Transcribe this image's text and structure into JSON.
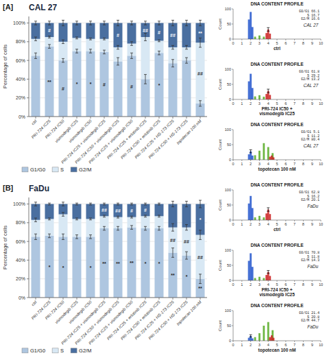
{
  "chart_data": [
    {
      "type": "bar",
      "stacked": true,
      "title": "CAL 27",
      "annotations": [
        "[A]"
      ],
      "categories": [
        "ctrl",
        "PRI-724 IC25",
        "PRI-724 IC50",
        "vismodegib IC25",
        "vismodegib IC50",
        "PRI-724 IC25 + vismodegib IC25",
        "PRI-724 IC50 + vismodegib IC25",
        "PRI-724 IC25 + vismodegib IC50",
        "PRI-724 IC25 + erlotinib IC25",
        "PRI-724 IC50 + erlotinib IC25",
        "PRI-724 IC25 + HS-173 IC25",
        "PRI-724 IC50 + HS-173 IC25",
        "topotecan 100 nM"
      ],
      "ylabel": "Percentage of cells",
      "ylim": [
        0,
        107
      ],
      "yticks": [
        {
          "value": 0,
          "label": "0%"
        },
        {
          "value": 20,
          "label": "20%"
        },
        {
          "value": 40,
          "label": "40%"
        },
        {
          "value": 60,
          "label": "60%"
        },
        {
          "value": 80,
          "label": "80%"
        },
        {
          "value": 100,
          "label": "100%"
        }
      ],
      "grid": true,
      "legend": "bottom",
      "series": [
        {
          "name": "G1/G0",
          "color": "#aec6e0",
          "values": [
            65,
            75,
            60,
            70,
            70,
            69,
            59,
            65,
            40,
            68,
            57,
            60,
            14
          ],
          "errors": [
            3,
            2,
            2,
            2,
            2,
            2,
            4,
            3,
            5,
            2,
            4,
            3,
            3
          ],
          "annotations": [
            null,
            "**",
            "#",
            "*",
            "*",
            "#",
            null,
            "#",
            null,
            "*",
            null,
            null,
            null
          ]
        },
        {
          "name": "S",
          "color": "#d8e8f4",
          "values": [
            18,
            10,
            20,
            14,
            13,
            14,
            15,
            13,
            45,
            13,
            17,
            14,
            65
          ],
          "errors": [
            2,
            1,
            2,
            1,
            1,
            1,
            2,
            2,
            4,
            1,
            2,
            2,
            5
          ],
          "annotations": [
            null,
            null,
            null,
            null,
            null,
            null,
            null,
            null,
            null,
            null,
            null,
            null,
            "##"
          ]
        },
        {
          "name": "G2/M",
          "color": "#4a6fa0",
          "values": [
            17,
            15,
            20,
            16,
            17,
            17,
            26,
            22,
            15,
            19,
            26,
            26,
            21
          ],
          "errors": [
            2,
            2,
            3,
            2,
            2,
            2,
            3,
            2,
            2,
            2,
            3,
            3,
            3
          ],
          "annotations": [
            null,
            "#",
            null,
            null,
            null,
            null,
            "#",
            null,
            "##",
            "#",
            "##",
            null,
            "**"
          ]
        }
      ]
    },
    {
      "type": "bar",
      "stacked": true,
      "title": "FaDu",
      "annotations": [
        "[B]"
      ],
      "categories": [
        "ctrl",
        "PRI-724 IC25",
        "PRI-724 IC50",
        "vismodegib IC25",
        "vismodegib IC50",
        "PRI-724 IC25 + vismodegib IC25",
        "PRI-724 IC50 + vismodegib IC25",
        "PRI-724 IC25 + vismodegib IC50",
        "PRI-724 IC25 + erlotinib IC25",
        "PRI-724 IC50 + erlotinib IC25",
        "PRI-724 IC25 + HS-173 IC25",
        "PRI-724 IC50 + HS-173 IC25",
        "topotecan 100 nM"
      ],
      "ylabel": "Percentage of cells",
      "ylim": [
        0,
        107
      ],
      "yticks": [
        {
          "value": 0,
          "label": "0%"
        },
        {
          "value": 20,
          "label": "20%"
        },
        {
          "value": 40,
          "label": "40%"
        },
        {
          "value": 60,
          "label": "60%"
        },
        {
          "value": 80,
          "label": "80%"
        },
        {
          "value": 100,
          "label": "100%"
        }
      ],
      "grid": true,
      "legend": "bottom",
      "series": [
        {
          "name": "G1/G0",
          "color": "#aec6e0",
          "values": [
            65,
            66,
            65,
            65,
            65,
            74,
            74,
            75,
            74,
            74,
            48,
            45,
            20
          ],
          "errors": [
            3,
            2,
            3,
            2,
            2,
            2,
            2,
            2,
            2,
            2,
            5,
            4,
            5
          ],
          "annotations": [
            null,
            "*",
            "*",
            null,
            "*",
            "**",
            "**",
            "**",
            "*",
            "*",
            "**",
            "*",
            "**"
          ]
        },
        {
          "name": "S",
          "color": "#d8e8f4",
          "values": [
            18,
            18,
            24,
            19,
            19,
            13,
            12,
            11,
            13,
            13,
            27,
            30,
            47
          ],
          "errors": [
            2,
            1,
            2,
            1,
            1,
            1,
            1,
            1,
            1,
            1,
            4,
            3,
            5
          ],
          "annotations": [
            null,
            null,
            null,
            null,
            null,
            null,
            null,
            null,
            null,
            null,
            "##",
            "##",
            "##"
          ]
        },
        {
          "name": "G2/M",
          "color": "#4a6fa0",
          "values": [
            17,
            16,
            11,
            16,
            16,
            13,
            14,
            14,
            13,
            13,
            25,
            25,
            33
          ],
          "errors": [
            2,
            1,
            2,
            1,
            1,
            1,
            1,
            1,
            1,
            1,
            3,
            3,
            4
          ],
          "annotations": [
            null,
            null,
            null,
            null,
            null,
            "##",
            "##",
            "#",
            "#",
            null,
            null,
            null,
            "*"
          ]
        }
      ]
    },
    {
      "type": "bar",
      "title": "DNA CONTENT PROFILE",
      "xlabel": "ctrl",
      "ylabel": "Count",
      "xlim": [
        0,
        10
      ],
      "xticks": [
        0,
        1,
        2,
        3,
        4,
        5,
        6,
        7,
        8,
        9,
        10
      ],
      "ylim": [
        0,
        100
      ],
      "yticks": [
        0,
        50,
        100
      ],
      "annotations": [
        "G0/G1 66.1\nS 16.7\nG2/M 16.6",
        "CAL 27"
      ],
      "series": [
        {
          "color": "#2255cc",
          "x": [
            1.8,
            2.0,
            2.2
          ],
          "values": [
            65,
            90,
            40
          ]
        },
        {
          "color": "#55aa22",
          "x": [
            2.5,
            3.0,
            3.5
          ],
          "values": [
            8,
            12,
            8
          ]
        },
        {
          "color": "#cc2222",
          "x": [
            3.8,
            4.0,
            4.2
          ],
          "values": [
            20,
            32,
            18
          ]
        },
        {
          "type": "errorbar",
          "color": "#000000",
          "x": [
            4.0
          ],
          "values": [
            32
          ],
          "errors": [
            6
          ]
        }
      ]
    },
    {
      "type": "bar",
      "title": "DNA CONTENT PROFILE",
      "xlabel": "PRI-724 IC50 +\nvismodegib IC25",
      "ylabel": "Count",
      "xlim": [
        0,
        10
      ],
      "xticks": [
        0,
        1,
        2,
        3,
        4,
        5,
        6,
        7,
        8,
        9,
        10
      ],
      "ylim": [
        0,
        100
      ],
      "yticks": [
        0,
        50,
        100
      ],
      "annotations": [
        "G0/G1 61.8\nS 29.2\nG2/M 13.2",
        "CAL 27"
      ],
      "series": [
        {
          "color": "#2255cc",
          "x": [
            1.8,
            2.0,
            2.2
          ],
          "values": [
            60,
            85,
            38
          ]
        },
        {
          "color": "#55aa22",
          "x": [
            2.5,
            3.0,
            3.5
          ],
          "values": [
            10,
            14,
            9
          ]
        },
        {
          "color": "#cc2222",
          "x": [
            3.8,
            4.0,
            4.2
          ],
          "values": [
            18,
            28,
            15
          ]
        },
        {
          "type": "errorbar",
          "color": "#000000",
          "x": [
            4.0
          ],
          "values": [
            28
          ],
          "errors": [
            6
          ]
        }
      ]
    },
    {
      "type": "bar",
      "title": "DNA CONTENT PROFILE",
      "xlabel": "topotecan 100 nM",
      "ylabel": "Count",
      "xlim": [
        0,
        10
      ],
      "xticks": [
        0,
        1,
        2,
        3,
        4,
        5,
        6,
        7,
        8,
        9,
        10
      ],
      "ylim": [
        0,
        100
      ],
      "yticks": [
        0,
        50,
        100
      ],
      "annotations": [
        "G0/G1 5.1\nS 11.2\nG2/M 80.4",
        "CAL 27"
      ],
      "series": [
        {
          "color": "#2255cc",
          "x": [
            1.8,
            2.0,
            2.2
          ],
          "values": [
            18,
            28,
            14
          ]
        },
        {
          "color": "#55aa22",
          "x": [
            2.5,
            3.0,
            3.5,
            4.0,
            4.5
          ],
          "values": [
            15,
            30,
            55,
            42,
            22
          ]
        },
        {
          "color": "#cc2222",
          "x": [
            4.2,
            4.4,
            4.6
          ],
          "values": [
            10,
            14,
            8
          ]
        },
        {
          "type": "errorbar",
          "color": "#000000",
          "x": [
            2.0
          ],
          "values": [
            28
          ],
          "errors": [
            5
          ]
        }
      ]
    },
    {
      "type": "bar",
      "title": "DNA CONTENT PROFILE",
      "xlabel": "ctrl",
      "ylabel": "Count",
      "xlim": [
        0,
        10
      ],
      "xticks": [
        0,
        1,
        2,
        3,
        4,
        5,
        6,
        7,
        8,
        9,
        10
      ],
      "ylim": [
        0,
        100
      ],
      "yticks": [
        0,
        50,
        100
      ],
      "annotations": [
        "G0/G1 62.8\nS 16.2\nG2/M 20.1",
        "FaDu"
      ],
      "series": [
        {
          "color": "#2255cc",
          "x": [
            1.8,
            2.0,
            2.2
          ],
          "values": [
            55,
            80,
            40
          ]
        },
        {
          "color": "#55aa22",
          "x": [
            2.5,
            3.0,
            3.5
          ],
          "values": [
            9,
            14,
            9
          ]
        },
        {
          "color": "#cc2222",
          "x": [
            3.8,
            4.0,
            4.2
          ],
          "values": [
            22,
            35,
            20
          ]
        },
        {
          "type": "errorbar",
          "color": "#000000",
          "x": [
            4.0
          ],
          "values": [
            35
          ],
          "errors": [
            6
          ]
        }
      ]
    },
    {
      "type": "bar",
      "title": "DNA CONTENT PROFILE",
      "xlabel": "PRI-724 IC50 +\nvismodegib IC25",
      "ylabel": "Count",
      "xlim": [
        0,
        10
      ],
      "xticks": [
        0,
        1,
        2,
        3,
        4,
        5,
        6,
        7,
        8,
        9,
        10
      ],
      "ylim": [
        0,
        100
      ],
      "yticks": [
        0,
        50,
        100
      ],
      "annotations": [
        "G0/G1 70.8\nS 11.8\nG2/M 14.3",
        "FaDu"
      ],
      "series": [
        {
          "color": "#2255cc",
          "x": [
            1.8,
            2.0,
            2.2
          ],
          "values": [
            65,
            90,
            45
          ]
        },
        {
          "color": "#55aa22",
          "x": [
            2.5,
            3.0,
            3.5
          ],
          "values": [
            8,
            12,
            8
          ]
        },
        {
          "color": "#cc2222",
          "x": [
            3.8,
            4.0,
            4.2
          ],
          "values": [
            18,
            28,
            15
          ]
        },
        {
          "type": "errorbar",
          "color": "#000000",
          "x": [
            4.0
          ],
          "values": [
            28
          ],
          "errors": [
            5
          ]
        }
      ]
    },
    {
      "type": "bar",
      "title": "DNA CONTENT PROFILE",
      "xlabel": "topotecan 100 nM",
      "ylabel": "Count",
      "xlim": [
        0,
        10
      ],
      "xticks": [
        0,
        1,
        2,
        3,
        4,
        5,
        6,
        7,
        8,
        9,
        10
      ],
      "ylim": [
        0,
        100
      ],
      "yticks": [
        0,
        50,
        100
      ],
      "annotations": [
        "G0/G1 21.4\nS 20.8\nG2/M 44.7",
        "FaDu"
      ],
      "series": [
        {
          "color": "#2255cc",
          "x": [
            1.8,
            2.0,
            2.2
          ],
          "values": [
            10,
            16,
            8
          ]
        },
        {
          "color": "#55aa22",
          "x": [
            2.5,
            3.0,
            3.5,
            4.0,
            4.5
          ],
          "values": [
            12,
            25,
            50,
            62,
            35
          ]
        },
        {
          "color": "#cc2222",
          "x": [
            4.2,
            4.4,
            4.6
          ],
          "values": [
            12,
            18,
            10
          ]
        },
        {
          "type": "errorbar",
          "color": "#000000",
          "x": [
            2.0
          ],
          "values": [
            16
          ],
          "errors": [
            4
          ]
        }
      ]
    }
  ]
}
